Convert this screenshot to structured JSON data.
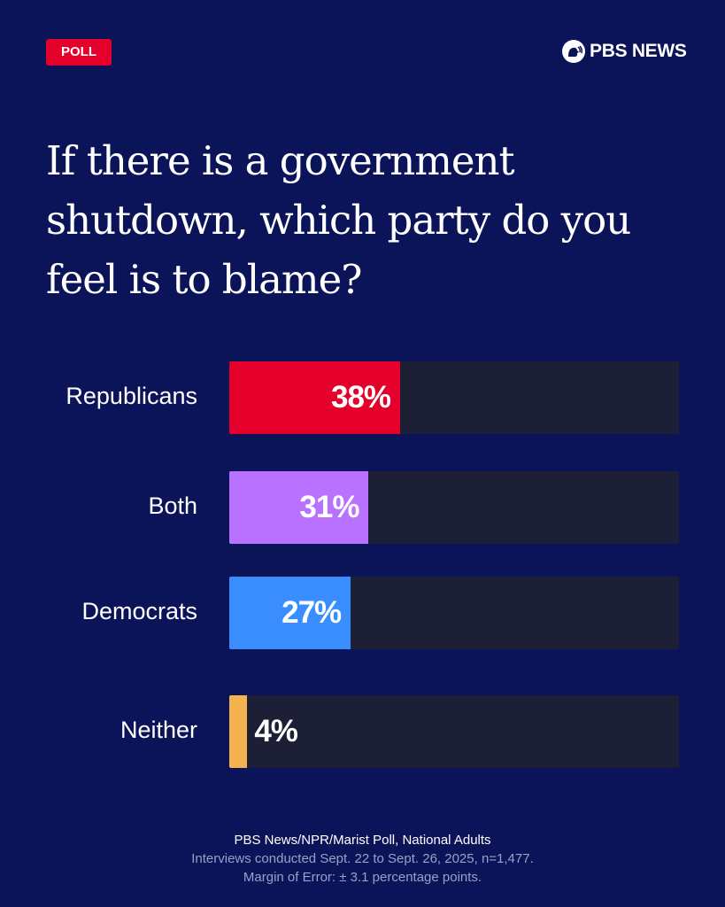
{
  "badge": "POLL",
  "logo": {
    "text": "PBS NEWS"
  },
  "chart_data": {
    "type": "bar",
    "orientation": "horizontal",
    "title": "If there is a government shutdown, which party do you feel is to blame?",
    "categories": [
      "Republicans",
      "Both",
      "Democrats",
      "Neither"
    ],
    "values": [
      38,
      31,
      27,
      4
    ],
    "labels": [
      "38%",
      "31%",
      "27%",
      "4%"
    ],
    "colors": [
      "#e4002b",
      "#b872ff",
      "#3a8dff",
      "#f5b350"
    ],
    "xlim": [
      0,
      100
    ],
    "track_color": "#1c1f36",
    "grid": false
  },
  "footer": {
    "source": "PBS News/NPR/Marist Poll, National Adults",
    "method": "Interviews conducted Sept. 22 to Sept. 26, 2025, n=1,477.",
    "moe": "Margin of Error: ± 3.1 percentage points."
  }
}
